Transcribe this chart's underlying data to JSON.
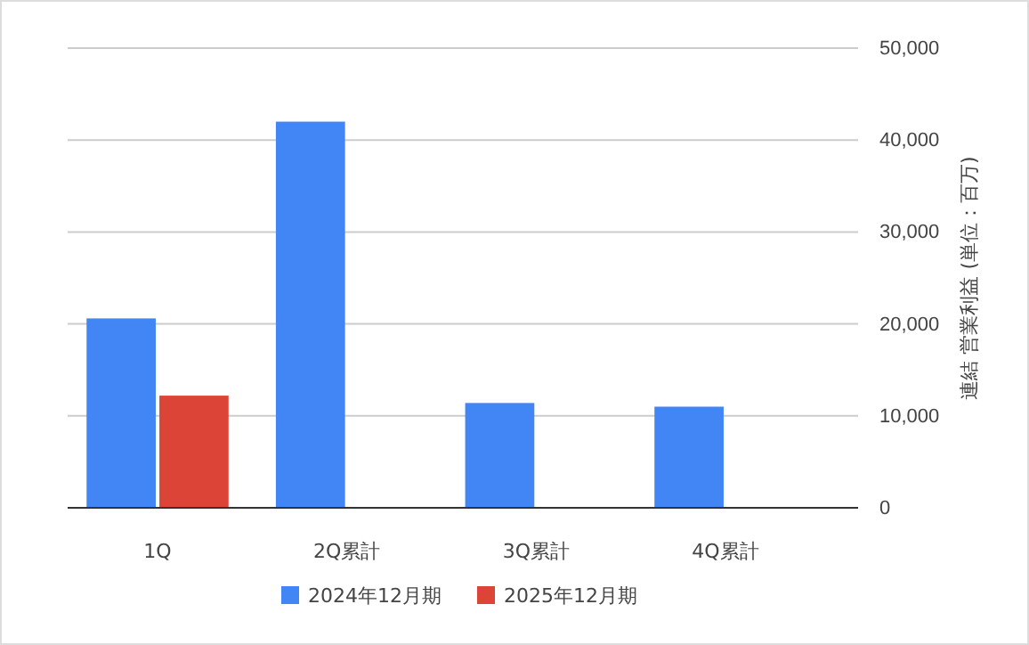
{
  "chart_data": {
    "type": "bar",
    "categories": [
      "1Q",
      "2Q累計",
      "3Q累計",
      "4Q累計"
    ],
    "series": [
      {
        "name": "2024年12月期",
        "color": "#4285f4",
        "values": [
          20600,
          42000,
          11400,
          11000
        ]
      },
      {
        "name": "2025年12月期",
        "color": "#db4437",
        "values": [
          12200,
          null,
          null,
          null
        ]
      }
    ],
    "ylabel": "連結 営業利益 (単位：百万)",
    "ylim": [
      0,
      50000
    ],
    "yticks": [
      {
        "value": 0,
        "label": "0"
      },
      {
        "value": 10000,
        "label": "10,000"
      },
      {
        "value": 20000,
        "label": "20,000"
      },
      {
        "value": 30000,
        "label": "30,000"
      },
      {
        "value": 40000,
        "label": "40,000"
      },
      {
        "value": 50000,
        "label": "50,000"
      }
    ],
    "grid": true,
    "legend": "bottom"
  }
}
